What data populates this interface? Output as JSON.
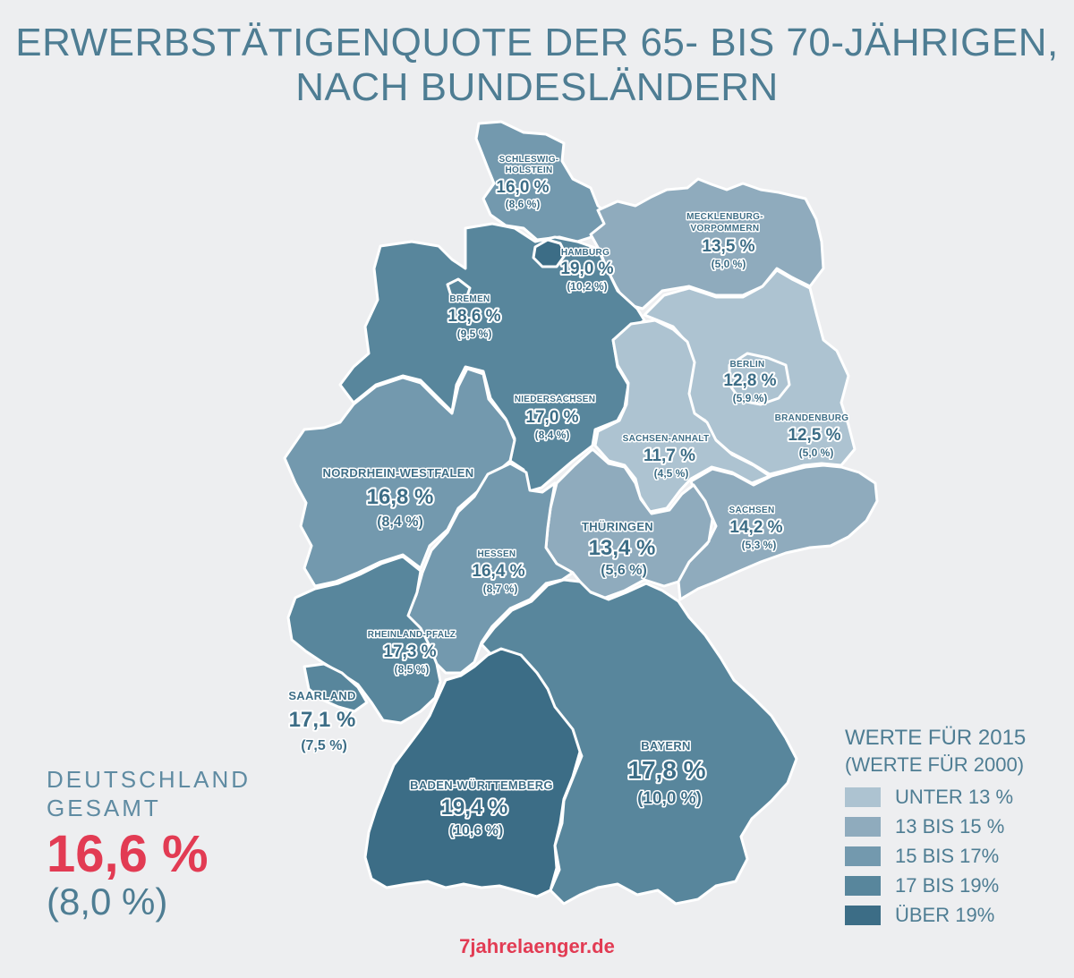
{
  "title": {
    "line1": "ERWERBSTÄTIGENQUOTE DER 65- BIS 70-JÄHRIGEN,",
    "line2": "NACH BUNDESLÄNDERN"
  },
  "colors": {
    "unter13": "#adc3d1",
    "13bis15": "#8fabbd",
    "15bis17": "#7399ae",
    "17bis19": "#58869c",
    "ueber19": "#3c6d86",
    "label": "#3c6d86",
    "highlight": "#e23b53"
  },
  "states": {
    "sh": {
      "name": "SCHLESWIG-",
      "name2": "HOLSTEIN",
      "value": "16,0 %",
      "old": "(8,6 %)"
    },
    "hh": {
      "name": "HAMBURG",
      "value": "19,0 %",
      "old": "(10,2 %)"
    },
    "mv": {
      "name": "MECKLENBURG-",
      "name2": "VORPOMMERN",
      "value": "13,5 %",
      "old": "(5,0 %)"
    },
    "hb": {
      "name": "BREMEN",
      "value": "18,6 %",
      "old": "(9,5 %)"
    },
    "ni": {
      "name": "NIEDERSACHSEN",
      "value": "17,0 %",
      "old": "(8,4 %)"
    },
    "be": {
      "name": "BERLIN",
      "value": "12,8 %",
      "old": "(5,9 %)"
    },
    "bb": {
      "name": "BRANDENBURG",
      "value": "12,5 %",
      "old": "(5,0 %)"
    },
    "st": {
      "name": "SACHSEN-ANHALT",
      "value": "11,7 %",
      "old": "(4,5 %)"
    },
    "nw": {
      "name": "NORDRHEIN-WESTFALEN",
      "value": "16,8 %",
      "old": "(8,4 %)"
    },
    "sn": {
      "name": "SACHSEN",
      "value": "14,2 %",
      "old": "(5,3 %)"
    },
    "th": {
      "name": "THÜRINGEN",
      "value": "13,4 %",
      "old": "(5,6 %)"
    },
    "he": {
      "name": "HESSEN",
      "value": "16,4 %",
      "old": "(8,7 %)"
    },
    "rp": {
      "name": "RHEINLAND-PFALZ",
      "value": "17,3 %",
      "old": "(8,5 %)"
    },
    "sl": {
      "name": "SAARLAND",
      "value": "17,1 %",
      "old": "(7,5 %)"
    },
    "by": {
      "name": "BAYERN",
      "value": "17,8 %",
      "old": "(10,0 %)"
    },
    "bw": {
      "name": "BADEN-WÜRTTEMBERG",
      "value": "19,4 %",
      "old": "(10,6 %)"
    }
  },
  "total": {
    "label1": "DEUTSCHLAND",
    "label2": "GESAMT",
    "value": "16,6 %",
    "old": "(8,0 %)"
  },
  "legend": {
    "title": "WERTE FÜR 2015",
    "subtitle": "(WERTE FÜR 2000)",
    "items": [
      "UNTER 13 %",
      "13 BIS 15 %",
      "15 BIS 17%",
      "17 BIS 19%",
      "ÜBER 19%"
    ]
  },
  "brand": "7jahrelaenger.de"
}
